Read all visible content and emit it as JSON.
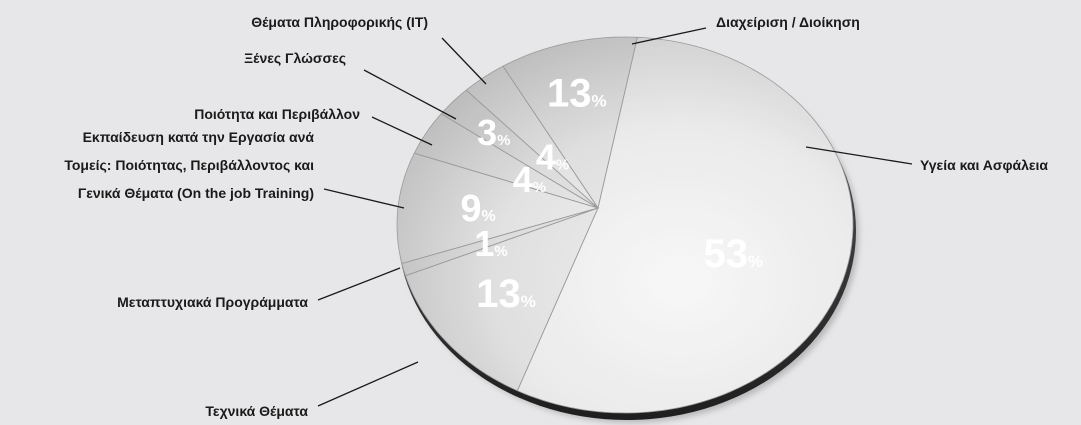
{
  "chart_data": {
    "type": "pie",
    "title": "",
    "percent_sign": "%",
    "slices": [
      {
        "key": "health",
        "label_lines": [
          "Υγεία και Ασφάλεια"
        ],
        "value": 53
      },
      {
        "key": "technical",
        "label_lines": [
          "Τεχνικά Θέματα"
        ],
        "value": 13
      },
      {
        "key": "postgrad",
        "label_lines": [
          "Μεταπτυχιακά Προγράμματα"
        ],
        "value": 1
      },
      {
        "key": "ojt",
        "label_lines": [
          "Εκπαίδευση κατά την Εργασία ανά",
          "Τομείς: Ποιότητας, Περιβάλλοντος και",
          "Γενικά Θέματα (On the job Training)"
        ],
        "value": 9
      },
      {
        "key": "quality",
        "label_lines": [
          "Ποιότητα και Περιβάλλον"
        ],
        "value": 4
      },
      {
        "key": "languages",
        "label_lines": [
          "Ξένες Γλώσσες"
        ],
        "value": 3
      },
      {
        "key": "it",
        "label_lines": [
          "Θέματα Πληροφορικής (IT)"
        ],
        "value": 4
      },
      {
        "key": "admin",
        "label_lines": [
          "Διαχείριση / Διοίκηση"
        ],
        "value": 13
      }
    ],
    "colors": {
      "background": "#e7e6e8",
      "slice_fill": "#d8d8d8",
      "slice_edge": "#9a9a9a",
      "percent_text": "#ffffff",
      "label_text": "#1a1a1a"
    }
  }
}
